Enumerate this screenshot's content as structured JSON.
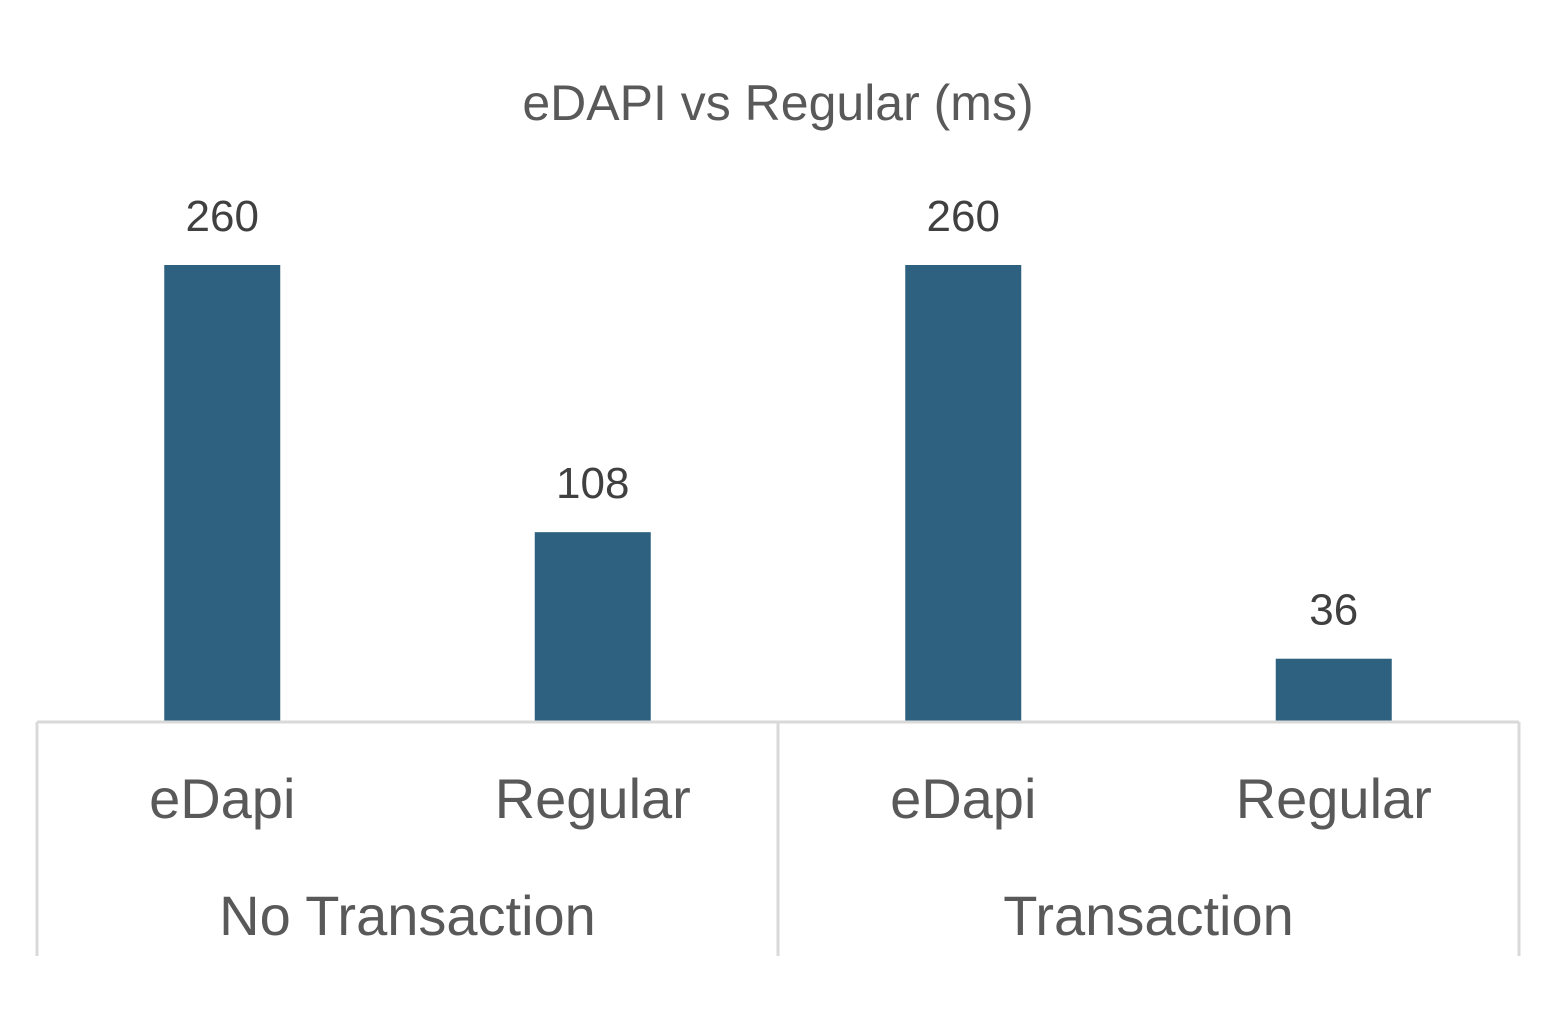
{
  "chart_data": {
    "type": "bar",
    "title": "eDAPI vs Regular (ms)",
    "xlabel": "",
    "ylabel": "",
    "ylim": [
      0,
      280
    ],
    "grid": false,
    "legend": "none",
    "groups": [
      {
        "label": "No Transaction",
        "categories": [
          "eDapi",
          "Regular"
        ],
        "values": [
          260,
          108
        ]
      },
      {
        "label": "Transaction",
        "categories": [
          "eDapi",
          "Regular"
        ],
        "values": [
          260,
          36
        ]
      }
    ],
    "data_labels": true
  },
  "colors": {
    "bar": "#2e617f",
    "text": "#595959",
    "data_label": "#404040",
    "axis": "#d9d9d9"
  }
}
